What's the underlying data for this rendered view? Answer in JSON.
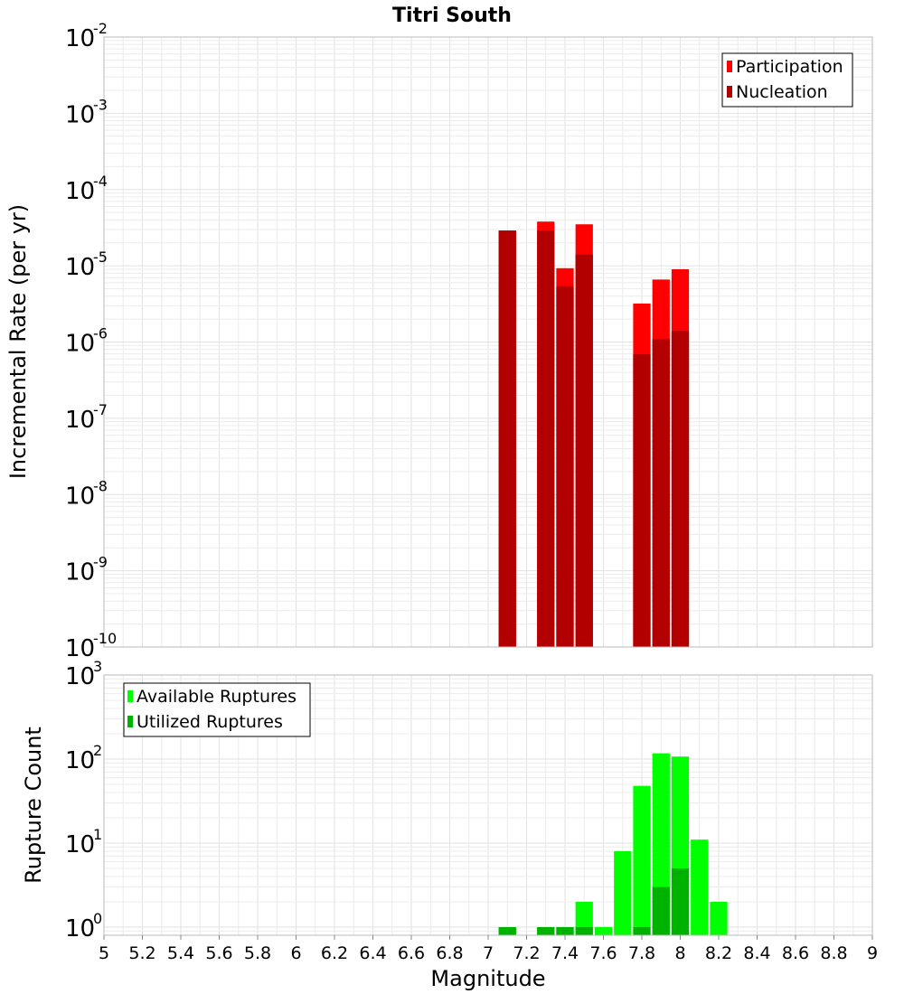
{
  "title": "Titri South",
  "xlabel": "Magnitude",
  "x_ticks": [
    "5",
    "5.2",
    "5.4",
    "5.6",
    "5.8",
    "6",
    "6.2",
    "6.4",
    "6.6",
    "6.8",
    "7",
    "7.2",
    "7.4",
    "7.6",
    "7.8",
    "8",
    "8.2",
    "8.4",
    "8.6",
    "8.8",
    "9"
  ],
  "chart_data": [
    {
      "type": "bar",
      "ylabel": "Incremental Rate (per yr)",
      "yscale": "log",
      "xlim": [
        5,
        9
      ],
      "ylim_exponents": [
        -10,
        -2
      ],
      "bar_width": 0.1,
      "y_tick_base": "10",
      "y_tick_exponents": [
        "-10",
        "-9",
        "-8",
        "-7",
        "-6",
        "-5",
        "-4",
        "-3",
        "-2"
      ],
      "legend_position": "top-right",
      "series": [
        {
          "name": "Participation",
          "color": "#ff0000",
          "x": [
            7.1,
            7.3,
            7.4,
            7.5,
            7.8,
            7.9,
            8.0
          ],
          "values": [
            2.9e-05,
            3.8e-05,
            9.3e-06,
            3.5e-05,
            3.2e-06,
            6.6e-06,
            9e-06
          ]
        },
        {
          "name": "Nucleation",
          "color": "#b20000",
          "x": [
            7.1,
            7.3,
            7.4,
            7.5,
            7.8,
            7.9,
            8.0
          ],
          "values": [
            2.9e-05,
            2.9e-05,
            5.4e-06,
            1.4e-05,
            6.9e-07,
            1.1e-06,
            1.4e-06
          ]
        }
      ]
    },
    {
      "type": "bar",
      "ylabel": "Rupture Count",
      "yscale": "log",
      "xlim": [
        5,
        9
      ],
      "ylim": [
        0.8,
        1000
      ],
      "bar_width": 0.1,
      "y_tick_base": "10",
      "y_tick_exponents": [
        "0",
        "1",
        "2",
        "3"
      ],
      "legend_position": "top-left",
      "series": [
        {
          "name": "Available Ruptures",
          "color": "#00ff00",
          "x": [
            7.1,
            7.3,
            7.4,
            7.5,
            7.6,
            7.7,
            7.8,
            7.9,
            8.0,
            8.1,
            8.2
          ],
          "values": [
            1,
            1,
            1,
            2,
            1,
            8,
            48,
            117,
            107,
            11,
            2
          ]
        },
        {
          "name": "Utilized Ruptures",
          "color": "#00b200",
          "x": [
            7.1,
            7.3,
            7.4,
            7.5,
            7.8,
            7.9,
            8.0
          ],
          "values": [
            1,
            1,
            1,
            1,
            1,
            3,
            5
          ]
        }
      ]
    }
  ]
}
